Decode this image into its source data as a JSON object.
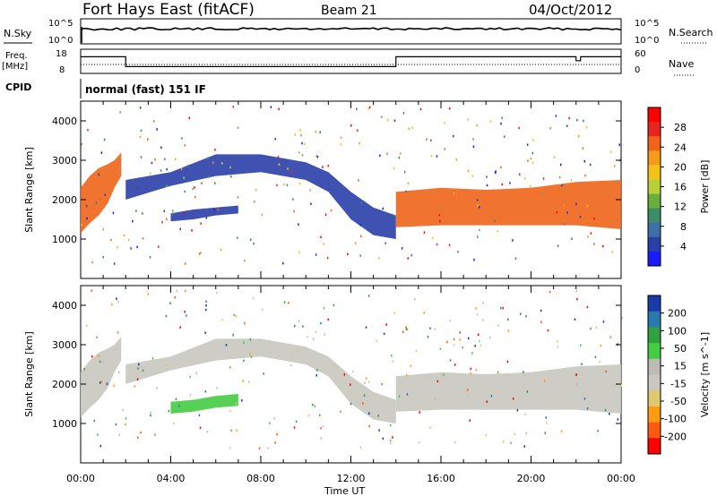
{
  "header": {
    "station": "Fort Hays East (fitACF)",
    "beam": "Beam 21",
    "date": "04/Oct/2012"
  },
  "panel_labels": {
    "nsky": "N.Sky",
    "nsky_top": "10^5",
    "nsky_bottom": "10^0",
    "nsearch": "N.Search",
    "nsearch_top": "10^5",
    "nsearch_bottom": "10^0",
    "freq": "Freq.",
    "freq_unit": "[MHz]",
    "freq_top": "18",
    "freq_bottom": "8",
    "nave": "Nave",
    "nave_top": "60",
    "nave_bottom": "0",
    "cpid": "CPID",
    "mode": "normal (fast) 151 IF"
  },
  "colors": {
    "power_scale": [
      "#1a1aff",
      "#2a3fa8",
      "#3f6fa8",
      "#3d8c6a",
      "#6aae3c",
      "#b8cf3a",
      "#f5c21a",
      "#f59a1a",
      "#f0641a",
      "#e8251a",
      "#ff0000"
    ],
    "velocity_scale": [
      "#ff0000",
      "#ff5a14",
      "#ff9a14",
      "#e0c870",
      "#c8c8c0",
      "#bcbcb4",
      "#44cc44",
      "#30a040",
      "#2a7ab0",
      "#1a3aa8"
    ],
    "freq_line": "#000000"
  },
  "chart_data": [
    {
      "type": "heatmap",
      "name_panel": "power",
      "ylabel": "Slant Range [km]",
      "ylim": [
        0,
        4500
      ],
      "y_ticks": [
        "1000",
        "2000",
        "3000",
        "4000"
      ],
      "colorbar_label": "Power [dB]",
      "colorbar_ticks": [
        "28",
        "24",
        "20",
        "16",
        "12",
        "8",
        "4"
      ],
      "bands": [
        {
          "x": [
            0.0,
            0.4,
            0.8,
            1.2,
            1.5,
            1.8
          ],
          "ymin": [
            1150,
            1400,
            1600,
            1900,
            2300,
            2600
          ],
          "ymax": [
            2300,
            2600,
            2800,
            2900,
            3000,
            3200
          ],
          "color": "#f0641a"
        },
        {
          "x": [
            2.0,
            4.0,
            6.0,
            8.0,
            10.0,
            11.0,
            12.0,
            13.0,
            14.0
          ],
          "ymin": [
            2000,
            2350,
            2600,
            2700,
            2500,
            2200,
            1500,
            1100,
            1000
          ],
          "ymax": [
            2500,
            2700,
            3150,
            3150,
            2950,
            2700,
            2200,
            1800,
            1600
          ],
          "color": "#2a3fa8"
        },
        {
          "x": [
            14.0,
            16.0,
            18.0,
            20.0,
            22.0,
            24.0
          ],
          "ymin": [
            1300,
            1350,
            1350,
            1350,
            1350,
            1250
          ],
          "ymax": [
            2200,
            2300,
            2250,
            2300,
            2450,
            2500
          ],
          "color": "#f0641a"
        },
        {
          "x": [
            4.0,
            5.0,
            6.0,
            7.0
          ],
          "ymin": [
            1450,
            1500,
            1600,
            1650
          ],
          "ymax": [
            1650,
            1750,
            1800,
            1850
          ],
          "color": "#2a3fa8"
        }
      ]
    },
    {
      "type": "heatmap",
      "name_panel": "velocity",
      "ylabel": "Slant Range [km]",
      "ylim": [
        0,
        4500
      ],
      "y_ticks": [
        "1000",
        "2000",
        "3000",
        "4000"
      ],
      "colorbar_label": "Velocity [m s^-1]",
      "colorbar_ticks": [
        "200",
        "100",
        "50",
        "15",
        "-15",
        "-50",
        "-100",
        "-200"
      ],
      "bands": [
        {
          "x": [
            0.0,
            0.4,
            0.8,
            1.2,
            1.5,
            1.8
          ],
          "ymin": [
            1150,
            1400,
            1600,
            1900,
            2300,
            2600
          ],
          "ymax": [
            2300,
            2600,
            2800,
            2900,
            3000,
            3200
          ],
          "color": "#c8c8c0"
        },
        {
          "x": [
            2.0,
            4.0,
            6.0,
            8.0,
            10.0,
            11.0,
            12.0,
            13.0,
            14.0
          ],
          "ymin": [
            2000,
            2350,
            2600,
            2700,
            2500,
            2200,
            1500,
            1100,
            1000
          ],
          "ymax": [
            2500,
            2700,
            3150,
            3150,
            2950,
            2700,
            2200,
            1800,
            1600
          ],
          "color": "#c8c8c0"
        },
        {
          "x": [
            14.0,
            16.0,
            18.0,
            20.0,
            22.0,
            24.0
          ],
          "ymin": [
            1300,
            1350,
            1350,
            1350,
            1350,
            1250
          ],
          "ymax": [
            2200,
            2300,
            2250,
            2300,
            2450,
            2500
          ],
          "color": "#c8c8c0"
        },
        {
          "x": [
            4.0,
            5.0,
            6.0,
            7.0
          ],
          "ymin": [
            1250,
            1300,
            1400,
            1450
          ],
          "ymax": [
            1550,
            1600,
            1700,
            1750
          ],
          "color": "#44cc44"
        }
      ]
    }
  ],
  "x_axis": {
    "label": "Time UT",
    "ticks": [
      "00:00",
      "04:00",
      "08:00",
      "12:00",
      "16:00",
      "20:00",
      "00:00"
    ]
  },
  "freq_series": {
    "x": [
      0,
      2,
      2,
      14,
      14,
      22,
      22,
      22.2,
      22.2,
      24
    ],
    "y": [
      16,
      16,
      11,
      11,
      16,
      16,
      14,
      14,
      16,
      16
    ]
  }
}
